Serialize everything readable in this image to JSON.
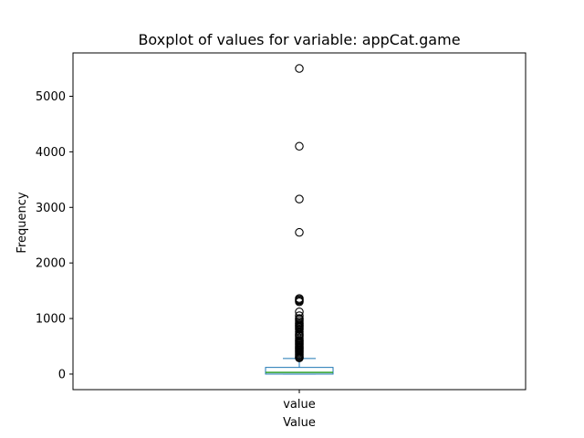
{
  "chart_data": {
    "type": "boxplot",
    "title": "Boxplot of values for variable: appCat.game",
    "xlabel": "Value",
    "ylabel": "Frequency",
    "categories": [
      "value"
    ],
    "ylim": [
      -280,
      5780
    ],
    "y_ticks": [
      0,
      1000,
      2000,
      3000,
      4000,
      5000
    ],
    "grid": false,
    "box": {
      "whisker_low": 0,
      "q1": 0,
      "median": 30,
      "q3": 120,
      "whisker_high": 280
    },
    "outliers": [
      5500,
      4100,
      3150,
      2550,
      1360,
      1340,
      1320,
      1300,
      1120,
      1050,
      1000,
      980,
      950,
      920,
      900,
      880,
      860,
      840,
      820,
      800,
      760,
      720,
      700,
      680,
      650,
      620,
      600,
      580,
      560,
      540,
      520,
      500,
      480,
      460,
      440,
      420,
      400,
      380,
      360,
      340,
      320,
      300,
      290
    ],
    "colors": {
      "box": "#1f77b4",
      "median": "#2ca02c",
      "outlier_edge": "#000000",
      "axes": "#000000"
    }
  }
}
